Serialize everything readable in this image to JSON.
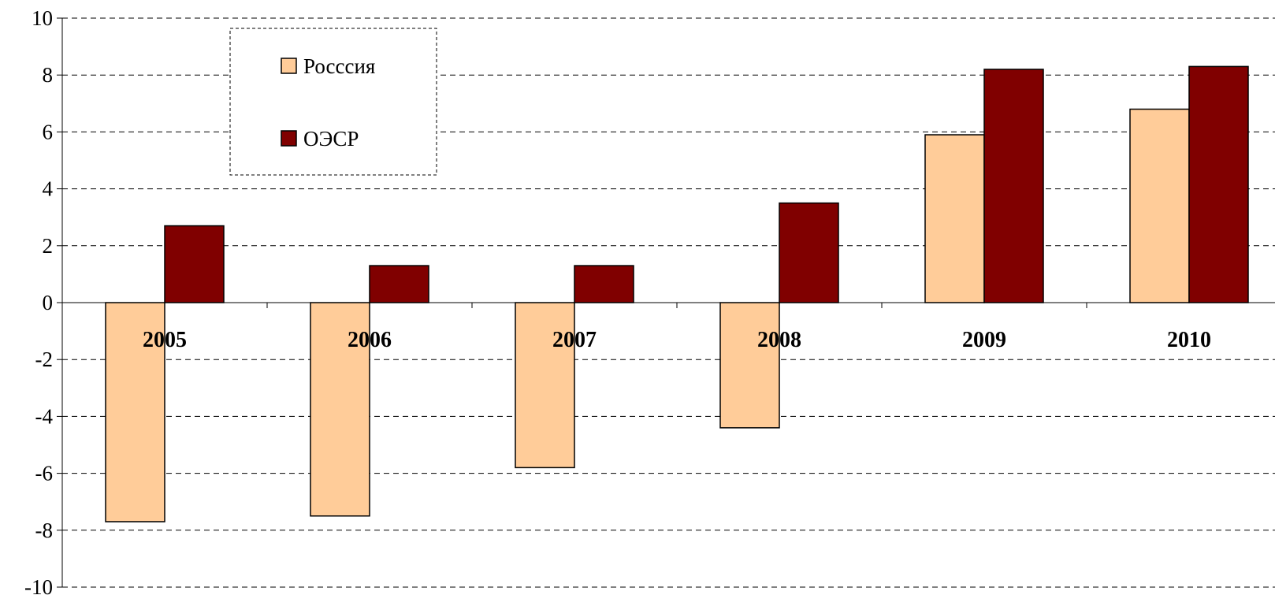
{
  "chart_data": {
    "type": "bar",
    "categories": [
      "2005",
      "2006",
      "2007",
      "2008",
      "2009",
      "2010"
    ],
    "series": [
      {
        "name": "Росссия",
        "values": [
          -7.7,
          -7.5,
          -5.8,
          -4.4,
          5.9,
          6.8
        ],
        "color": "#FFCC99"
      },
      {
        "name": "ОЭСР",
        "values": [
          2.7,
          1.3,
          1.3,
          3.5,
          8.2,
          8.3
        ],
        "color": "#800000"
      }
    ],
    "yticks": [
      "10",
      "8",
      "6",
      "4",
      "2",
      "0",
      "-2",
      "-4",
      "-6",
      "-8",
      "-10"
    ],
    "ylim": [
      -10,
      10
    ],
    "ystep": 2,
    "grid": true,
    "legend_position": "top-left",
    "title": "",
    "xlabel": "",
    "ylabel": ""
  }
}
